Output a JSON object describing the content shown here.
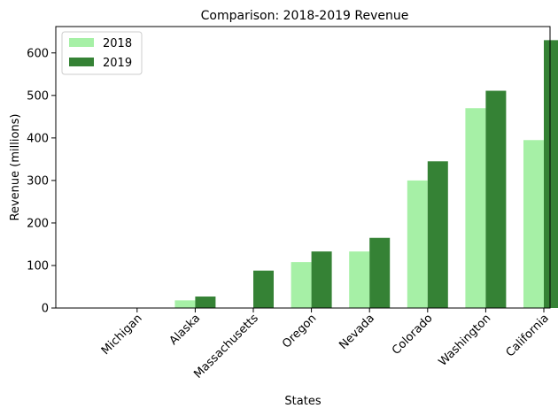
{
  "chart_data": {
    "type": "bar",
    "title": "Comparison: 2018-2019 Revenue",
    "xlabel": "States",
    "ylabel": "Revenue (millions)",
    "categories": [
      "Michigan",
      "Alaska",
      "Massachusetts",
      "Oregon",
      "Nevada",
      "Colorado",
      "Washington",
      "California"
    ],
    "series": [
      {
        "name": "2018",
        "color": "#a6f0a6",
        "values": [
          0,
          18,
          1,
          108,
          133,
          300,
          470,
          395
        ]
      },
      {
        "name": "2019",
        "color": "#358235",
        "values": [
          0,
          27,
          88,
          133,
          165,
          345,
          511,
          630
        ]
      }
    ],
    "ylim": [
      0,
      662
    ],
    "yticks": [
      0,
      100,
      200,
      300,
      400,
      500,
      600
    ],
    "legend": "top-left",
    "grid": false
  }
}
